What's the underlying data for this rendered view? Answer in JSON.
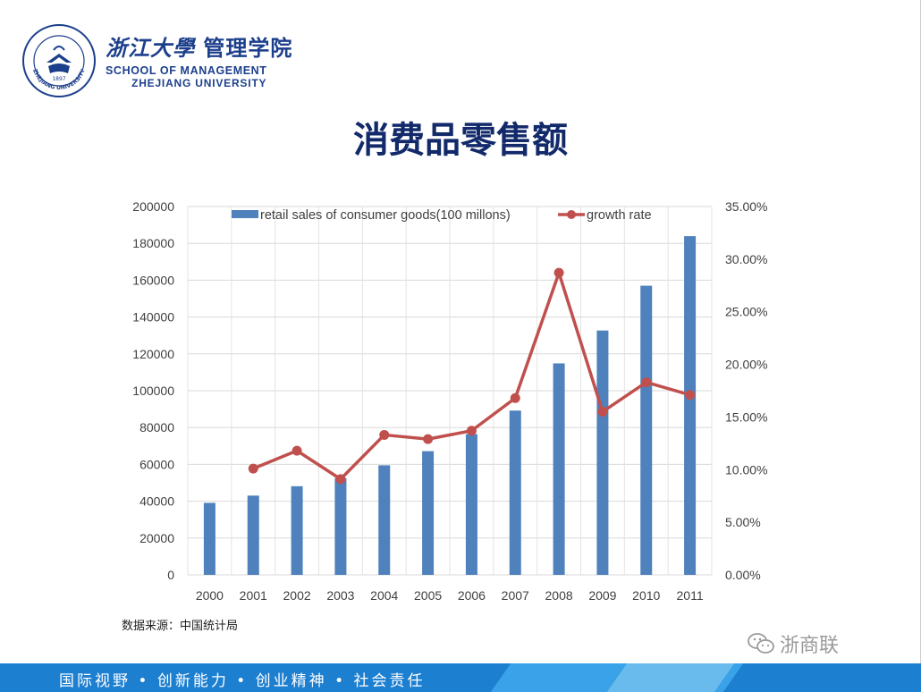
{
  "header": {
    "logo_cn": "浙江大學",
    "logo_cn_dept": "管理学院",
    "logo_en_line1": "SCHOOL OF MANAGEMENT",
    "logo_en_line2": "ZHEJIANG UNIVERSITY",
    "seal_text": "ZHEJIANG UNIVERSITY",
    "seal_year": "1897",
    "brand_color": "#1c3f8c"
  },
  "title": "消费品零售额",
  "source_note": "数据来源：中国统计局",
  "watermark": {
    "icon": "wechat-icon",
    "text": "浙商联"
  },
  "footer": {
    "slogan": "国际视野 • 创新能力 • 创业精神 • 社会责任",
    "color": "#1d7fd0"
  },
  "chart_data": {
    "type": "bar",
    "categories": [
      "2000",
      "2001",
      "2002",
      "2003",
      "2004",
      "2005",
      "2006",
      "2007",
      "2008",
      "2009",
      "2010",
      "2011"
    ],
    "series": [
      {
        "name": "retail sales of consumer goods(100 millons)",
        "type": "bar",
        "axis": "left",
        "color": "#4f81bd",
        "values": [
          39106,
          43055,
          48136,
          52516,
          59501,
          67177,
          76410,
          89210,
          114830,
          132678,
          156998,
          183919
        ]
      },
      {
        "name": "growth rate",
        "type": "line",
        "axis": "right",
        "color": "#c0504d",
        "values": [
          null,
          0.101,
          0.118,
          0.091,
          0.133,
          0.129,
          0.137,
          0.168,
          0.287,
          0.155,
          0.183,
          0.171
        ]
      }
    ],
    "y_left": {
      "min": 0,
      "max": 200000,
      "step": 20000,
      "tick_labels": [
        "0",
        "20000",
        "40000",
        "60000",
        "80000",
        "100000",
        "120000",
        "140000",
        "160000",
        "180000",
        "200000"
      ]
    },
    "y_right": {
      "min": 0,
      "max": 0.35,
      "step": 0.05,
      "tick_labels": [
        "0.00%",
        "5.00%",
        "10.00%",
        "15.00%",
        "20.00%",
        "25.00%",
        "30.00%",
        "35.00%"
      ]
    },
    "grid": true,
    "legend_position": "top"
  }
}
